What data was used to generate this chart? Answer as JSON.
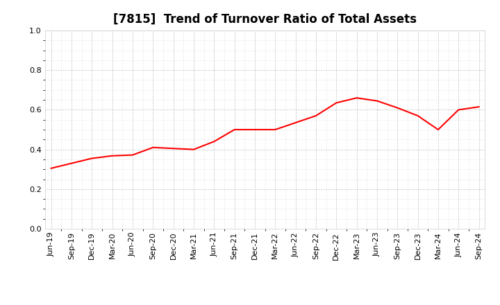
{
  "title": "[7815]  Trend of Turnover Ratio of Total Assets",
  "x_labels": [
    "Jun-19",
    "Sep-19",
    "Dec-19",
    "Mar-20",
    "Jun-20",
    "Sep-20",
    "Dec-20",
    "Mar-21",
    "Jun-21",
    "Sep-21",
    "Dec-21",
    "Mar-22",
    "Jun-22",
    "Sep-22",
    "Dec-22",
    "Mar-23",
    "Jun-23",
    "Sep-23",
    "Dec-23",
    "Mar-24",
    "Jun-24",
    "Sep-24"
  ],
  "values": [
    0.305,
    0.33,
    0.355,
    0.368,
    0.372,
    0.41,
    0.405,
    0.4,
    0.44,
    0.5,
    0.5,
    0.5,
    0.535,
    0.57,
    0.635,
    0.66,
    0.645,
    0.61,
    0.57,
    0.5,
    0.6,
    0.615
  ],
  "line_color": "#FF0000",
  "fill_color": "#FFCCCC",
  "fill_alpha": 0.0,
  "ylim": [
    0.0,
    1.0
  ],
  "yticks": [
    0.0,
    0.2,
    0.4,
    0.6,
    0.8,
    1.0
  ],
  "background_color": "#FFFFFF",
  "grid_color": "#999999",
  "title_fontsize": 12,
  "tick_fontsize": 8
}
